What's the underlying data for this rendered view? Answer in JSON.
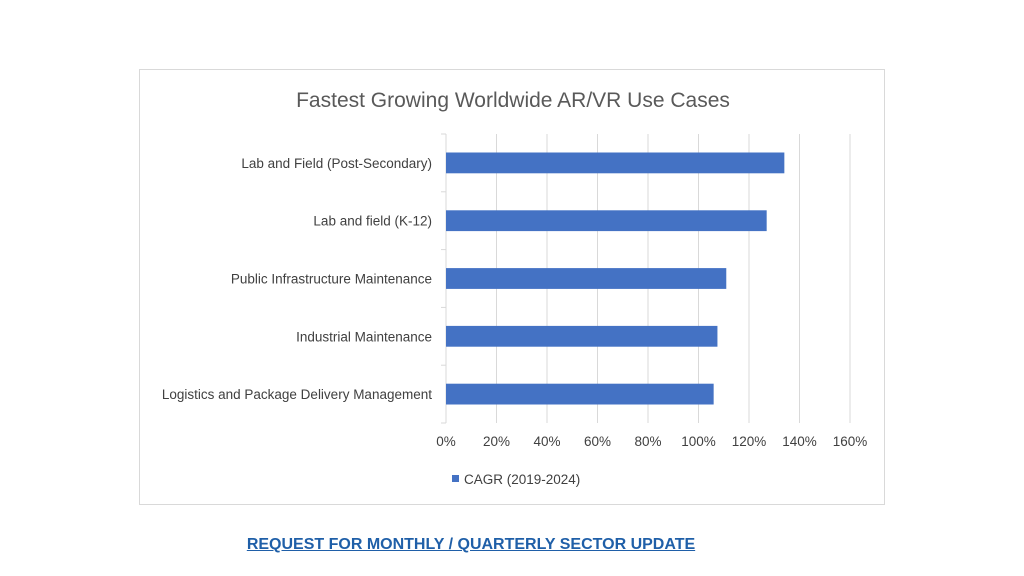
{
  "link": {
    "request_label": "REQUEST FOR MONTHLY / QUARTERLY SECTOR UPDATE"
  },
  "colors": {
    "bar": "#4472c4",
    "grid": "#d9d9d9",
    "link": "#1f5fa8"
  },
  "chart_data": {
    "type": "bar",
    "orientation": "horizontal",
    "title": "Fastest Growing Worldwide AR/VR Use Cases",
    "xlabel": "",
    "ylabel": "",
    "categories": [
      "Lab and Field (Post-Secondary)",
      "Lab and field (K-12)",
      "Public Infrastructure Maintenance",
      "Industrial Maintenance",
      "Logistics and Package Delivery Management"
    ],
    "series": [
      {
        "name": "CAGR (2019-2024)",
        "values": [
          1.34,
          1.27,
          1.11,
          1.075,
          1.06
        ]
      }
    ],
    "xlim": [
      0,
      1.6
    ],
    "xticks": [
      "0%",
      "20%",
      "40%",
      "60%",
      "80%",
      "100%",
      "120%",
      "140%",
      "160%"
    ],
    "grid": true,
    "legend": "bottom-left"
  }
}
